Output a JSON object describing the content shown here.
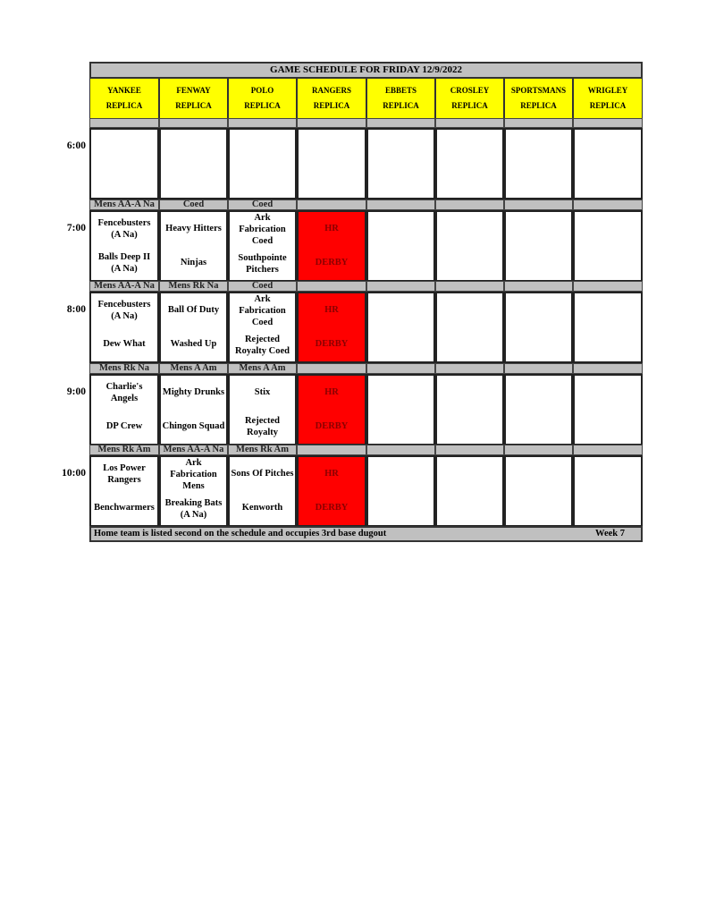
{
  "title": "GAME SCHEDULE FOR FRIDAY 12/9/2022",
  "fields": [
    {
      "name": "YANKEE",
      "sub": "REPLICA"
    },
    {
      "name": "FENWAY",
      "sub": "REPLICA"
    },
    {
      "name": "POLO",
      "sub": "REPLICA"
    },
    {
      "name": "RANGERS",
      "sub": "REPLICA"
    },
    {
      "name": "EBBETS",
      "sub": "REPLICA"
    },
    {
      "name": "CROSLEY",
      "sub": "REPLICA"
    },
    {
      "name": "SPORTSMANS",
      "sub": "REPLICA"
    },
    {
      "name": "WRIGLEY",
      "sub": "REPLICA"
    }
  ],
  "colors": {
    "header": "#ffff00",
    "divider": "#c0c0c0",
    "highlight": "#ff0000",
    "highlight_text": "#8b0000"
  },
  "slots": [
    {
      "time": "6:00",
      "categories": [
        "",
        "",
        "",
        "",
        "",
        "",
        "",
        ""
      ],
      "games": [
        [
          "",
          ""
        ],
        [
          "",
          ""
        ],
        [
          "",
          ""
        ],
        [
          "",
          ""
        ],
        [
          "",
          ""
        ],
        [
          "",
          ""
        ],
        [
          "",
          ""
        ],
        [
          "",
          ""
        ]
      ],
      "highlight": []
    },
    {
      "time": "7:00",
      "categories": [
        "Mens AA-A Na",
        "Coed",
        "Coed",
        "",
        "",
        "",
        "",
        ""
      ],
      "games": [
        [
          "Fencebusters (A Na)",
          "Balls Deep II (A Na)"
        ],
        [
          "Heavy Hitters",
          "Ninjas"
        ],
        [
          "Ark Fabrication Coed",
          "Southpointe Pitchers"
        ],
        [
          "HR",
          "DERBY"
        ],
        [
          "",
          ""
        ],
        [
          "",
          ""
        ],
        [
          "",
          ""
        ],
        [
          "",
          ""
        ]
      ],
      "highlight": [
        3
      ]
    },
    {
      "time": "8:00",
      "categories": [
        "Mens AA-A Na",
        "Mens Rk Na",
        "Coed",
        "",
        "",
        "",
        "",
        ""
      ],
      "games": [
        [
          "Fencebusters (A Na)",
          "Dew What"
        ],
        [
          "Ball Of Duty",
          "Washed Up"
        ],
        [
          "Ark Fabrication Coed",
          "Rejected Royalty Coed"
        ],
        [
          "HR",
          "DERBY"
        ],
        [
          "",
          ""
        ],
        [
          "",
          ""
        ],
        [
          "",
          ""
        ],
        [
          "",
          ""
        ]
      ],
      "highlight": [
        3
      ]
    },
    {
      "time": "9:00",
      "categories": [
        "Mens Rk Na",
        "Mens A Am",
        "Mens A Am",
        "",
        "",
        "",
        "",
        ""
      ],
      "games": [
        [
          "Charlie's Angels",
          "DP Crew"
        ],
        [
          "Mighty Drunks",
          "Chingon Squad"
        ],
        [
          "Stix",
          "Rejected Royalty"
        ],
        [
          "HR",
          "DERBY"
        ],
        [
          "",
          ""
        ],
        [
          "",
          ""
        ],
        [
          "",
          ""
        ],
        [
          "",
          ""
        ]
      ],
      "highlight": [
        3
      ]
    },
    {
      "time": "10:00",
      "categories": [
        "Mens Rk Am",
        "Mens AA-A Na",
        "Mens Rk Am",
        "",
        "",
        "",
        "",
        ""
      ],
      "games": [
        [
          "Los Power Rangers",
          "Benchwarmers"
        ],
        [
          "Ark Fabrication Mens",
          "Breaking Bats (A Na)"
        ],
        [
          "Sons Of Pitches",
          "Kenworth"
        ],
        [
          "HR",
          "DERBY"
        ],
        [
          "",
          ""
        ],
        [
          "",
          ""
        ],
        [
          "",
          ""
        ],
        [
          "",
          ""
        ]
      ],
      "highlight": [
        3
      ]
    }
  ],
  "footer": {
    "note": "Home team is listed second on the schedule and occupies 3rd base dugout",
    "week": "Week 7"
  }
}
